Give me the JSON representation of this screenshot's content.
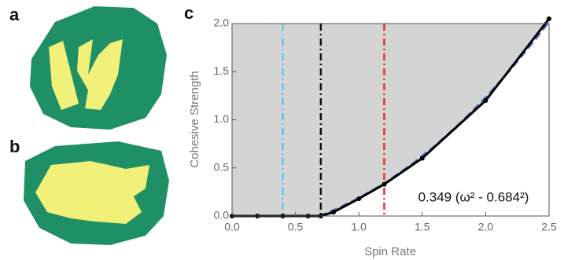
{
  "panel_labels": [
    "a",
    "b",
    "c"
  ],
  "chart_data": {
    "type": "line",
    "xlabel": "Spin Rate",
    "ylabel": "Cohesive Strength",
    "annotation": "0.349 (ω² - 0.684²)",
    "xlim": [
      0,
      2.5
    ],
    "ylim": [
      0,
      2.0
    ],
    "xticks": [
      {
        "value": 0,
        "label": "0.0"
      },
      0.5,
      {
        "value": 1,
        "label": "1.0"
      },
      1.5,
      {
        "value": 2,
        "label": "2.0"
      },
      2.5
    ],
    "yticks": [
      {
        "value": 0,
        "label": "0.0"
      },
      0.5,
      {
        "value": 1,
        "label": "1.0"
      },
      1.5,
      {
        "value": 2,
        "label": "2.0"
      }
    ],
    "background": "#d4d4d4",
    "vlines": [
      {
        "x": 0.4,
        "color": "#5cc8e6"
      },
      {
        "x": 0.7,
        "color": "#111111"
      },
      {
        "x": 1.2,
        "color": "#e53030"
      }
    ],
    "series": [
      {
        "color": "#4a67c8",
        "dashed": true,
        "x": [
          0.684,
          0.8,
          1.0,
          1.2,
          1.4,
          1.6,
          1.8,
          2.0,
          2.2,
          2.4,
          2.5
        ],
        "values": [
          0,
          0.06,
          0.186,
          0.339,
          0.521,
          0.73,
          0.967,
          1.233,
          1.526,
          1.847,
          2.018
        ]
      },
      {
        "color": "#000000",
        "dashed": false,
        "markers": true,
        "x": [
          0,
          0.2,
          0.4,
          0.6,
          0.7,
          0.8,
          1.0,
          1.2,
          1.5,
          2.0,
          2.5
        ],
        "values": [
          0,
          0,
          0,
          0,
          0,
          0.04,
          0.18,
          0.33,
          0.6,
          1.2,
          2.05
        ]
      }
    ]
  }
}
